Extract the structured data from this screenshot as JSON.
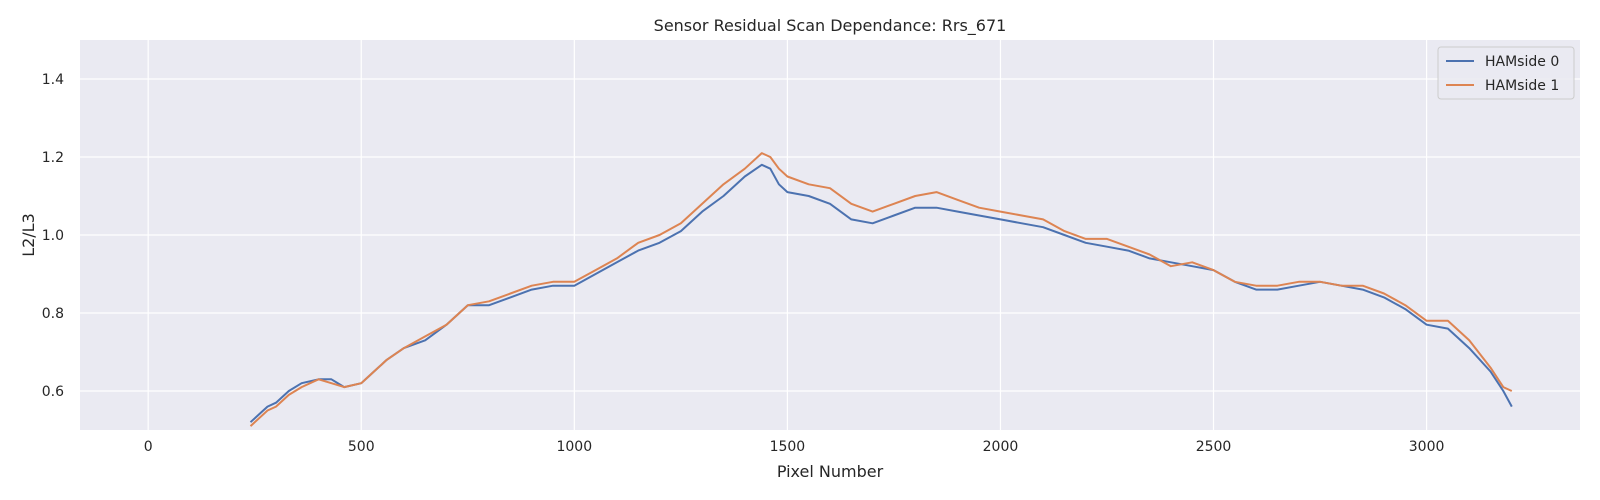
{
  "chart_data": {
    "type": "line",
    "title": "Sensor Residual Scan Dependance: Rrs_671",
    "xlabel": "Pixel Number",
    "ylabel": "L2/L3",
    "xlim": [
      -160,
      3360
    ],
    "ylim": [
      0.5,
      1.5
    ],
    "xticks": [
      0,
      500,
      1000,
      1500,
      2000,
      2500,
      3000
    ],
    "yticks": [
      0.6,
      0.8,
      1.0,
      1.2,
      1.4
    ],
    "xtick_labels": [
      "0",
      "500",
      "1000",
      "1500",
      "2000",
      "2500",
      "3000"
    ],
    "ytick_labels": [
      "0.6",
      "0.8",
      "1.0",
      "1.2",
      "1.4"
    ],
    "grid": true,
    "legend_position": "top-right",
    "series": [
      {
        "name": "HAMside 0",
        "color": "#4c72b0",
        "x": [
          240,
          260,
          280,
          300,
          330,
          360,
          400,
          430,
          460,
          500,
          530,
          560,
          600,
          650,
          700,
          750,
          800,
          850,
          900,
          950,
          1000,
          1050,
          1100,
          1150,
          1200,
          1250,
          1300,
          1350,
          1400,
          1440,
          1460,
          1480,
          1500,
          1550,
          1600,
          1650,
          1700,
          1750,
          1800,
          1850,
          1900,
          1950,
          2000,
          2050,
          2100,
          2150,
          2200,
          2250,
          2300,
          2350,
          2400,
          2450,
          2500,
          2550,
          2600,
          2650,
          2700,
          2750,
          2800,
          2850,
          2900,
          2950,
          3000,
          3050,
          3100,
          3150,
          3180,
          3200
        ],
        "y": [
          0.52,
          0.54,
          0.56,
          0.57,
          0.6,
          0.62,
          0.63,
          0.63,
          0.61,
          0.62,
          0.65,
          0.68,
          0.71,
          0.73,
          0.77,
          0.82,
          0.82,
          0.84,
          0.86,
          0.87,
          0.87,
          0.9,
          0.93,
          0.96,
          0.98,
          1.01,
          1.06,
          1.1,
          1.15,
          1.18,
          1.17,
          1.13,
          1.11,
          1.1,
          1.08,
          1.04,
          1.03,
          1.05,
          1.07,
          1.07,
          1.06,
          1.05,
          1.04,
          1.03,
          1.02,
          1.0,
          0.98,
          0.97,
          0.96,
          0.94,
          0.93,
          0.92,
          0.91,
          0.88,
          0.86,
          0.86,
          0.87,
          0.88,
          0.87,
          0.86,
          0.84,
          0.81,
          0.77,
          0.76,
          0.71,
          0.65,
          0.6,
          0.56
        ]
      },
      {
        "name": "HAMside 1",
        "color": "#dd8452",
        "x": [
          240,
          260,
          280,
          300,
          330,
          360,
          400,
          430,
          460,
          500,
          530,
          560,
          600,
          650,
          700,
          750,
          800,
          850,
          900,
          950,
          1000,
          1050,
          1100,
          1150,
          1200,
          1250,
          1300,
          1350,
          1400,
          1440,
          1460,
          1480,
          1500,
          1550,
          1600,
          1650,
          1700,
          1750,
          1800,
          1850,
          1900,
          1950,
          2000,
          2050,
          2100,
          2150,
          2200,
          2250,
          2300,
          2350,
          2400,
          2450,
          2500,
          2550,
          2600,
          2650,
          2700,
          2750,
          2800,
          2850,
          2900,
          2950,
          3000,
          3050,
          3100,
          3150,
          3180,
          3200
        ],
        "y": [
          0.51,
          0.53,
          0.55,
          0.56,
          0.59,
          0.61,
          0.63,
          0.62,
          0.61,
          0.62,
          0.65,
          0.68,
          0.71,
          0.74,
          0.77,
          0.82,
          0.83,
          0.85,
          0.87,
          0.88,
          0.88,
          0.91,
          0.94,
          0.98,
          1.0,
          1.03,
          1.08,
          1.13,
          1.17,
          1.21,
          1.2,
          1.17,
          1.15,
          1.13,
          1.12,
          1.08,
          1.06,
          1.08,
          1.1,
          1.11,
          1.09,
          1.07,
          1.06,
          1.05,
          1.04,
          1.01,
          0.99,
          0.99,
          0.97,
          0.95,
          0.92,
          0.93,
          0.91,
          0.88,
          0.87,
          0.87,
          0.88,
          0.88,
          0.87,
          0.87,
          0.85,
          0.82,
          0.78,
          0.78,
          0.73,
          0.66,
          0.61,
          0.6
        ]
      }
    ]
  }
}
